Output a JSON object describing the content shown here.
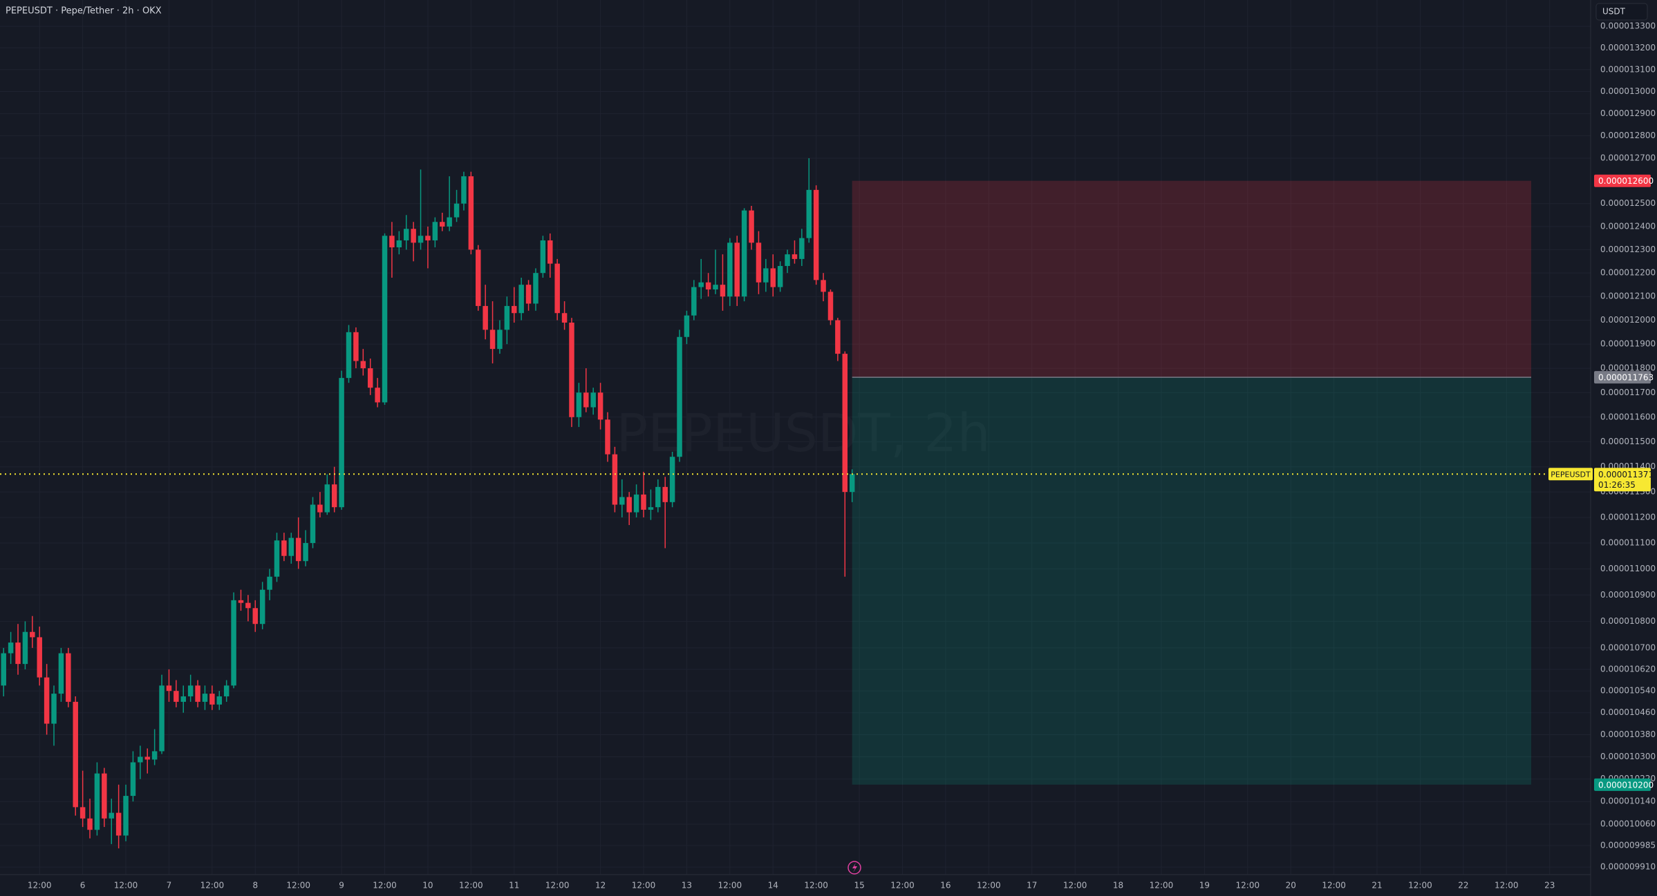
{
  "chart_data": {
    "type": "candlestick",
    "title": "PEPEUSDT · Pepe/Tether · 2h · OKX",
    "watermark": "PEPEUSDT, 2h",
    "currency": "USDT",
    "log_scale": true,
    "grid": true,
    "up_color": "#089981",
    "down_color": "#f23645",
    "ylim": [
      9.884e-06,
      1.3423e-05
    ],
    "xlim": [
      -0.5,
      220.7
    ],
    "yticks": [
      {
        "value": 1.33e-05,
        "label": "0.000013300"
      },
      {
        "value": 1.32e-05,
        "label": "0.000013200"
      },
      {
        "value": 1.31e-05,
        "label": "0.000013100"
      },
      {
        "value": 1.3e-05,
        "label": "0.000013000"
      },
      {
        "value": 1.29e-05,
        "label": "0.000012900"
      },
      {
        "value": 1.28e-05,
        "label": "0.000012800"
      },
      {
        "value": 1.27e-05,
        "label": "0.000012700"
      },
      {
        "value": 1.25e-05,
        "label": "0.000012500"
      },
      {
        "value": 1.24e-05,
        "label": "0.000012400"
      },
      {
        "value": 1.23e-05,
        "label": "0.000012300"
      },
      {
        "value": 1.22e-05,
        "label": "0.000012200"
      },
      {
        "value": 1.21e-05,
        "label": "0.000012100"
      },
      {
        "value": 1.2e-05,
        "label": "0.000012000"
      },
      {
        "value": 1.19e-05,
        "label": "0.000011900"
      },
      {
        "value": 1.18e-05,
        "label": "0.000011800"
      },
      {
        "value": 1.17e-05,
        "label": "0.000011700"
      },
      {
        "value": 1.16e-05,
        "label": "0.000011600"
      },
      {
        "value": 1.15e-05,
        "label": "0.000011500"
      },
      {
        "value": 1.14e-05,
        "label": "0.000011400"
      },
      {
        "value": 1.13e-05,
        "label": "0.000011300"
      },
      {
        "value": 1.12e-05,
        "label": "0.000011200"
      },
      {
        "value": 1.11e-05,
        "label": "0.000011100"
      },
      {
        "value": 1.1e-05,
        "label": "0.000011000"
      },
      {
        "value": 1.09e-05,
        "label": "0.000010900"
      },
      {
        "value": 1.08e-05,
        "label": "0.000010800"
      },
      {
        "value": 1.07e-05,
        "label": "0.000010700"
      },
      {
        "value": 1.062e-05,
        "label": "0.000010620"
      },
      {
        "value": 1.054e-05,
        "label": "0.000010540"
      },
      {
        "value": 1.046e-05,
        "label": "0.000010460"
      },
      {
        "value": 1.038e-05,
        "label": "0.000010380"
      },
      {
        "value": 1.03e-05,
        "label": "0.000010300"
      },
      {
        "value": 1.022e-05,
        "label": "0.000010220"
      },
      {
        "value": 1.014e-05,
        "label": "0.000010140"
      },
      {
        "value": 1.006e-05,
        "label": "0.000010060"
      },
      {
        "value": 9.985e-06,
        "label": "0.000009985"
      },
      {
        "value": 9.91e-06,
        "label": "0.000009910"
      }
    ],
    "xticks": [
      {
        "value": 5,
        "label": "12:00"
      },
      {
        "value": 11,
        "label": "6"
      },
      {
        "value": 17,
        "label": "12:00"
      },
      {
        "value": 23,
        "label": "7"
      },
      {
        "value": 29,
        "label": "12:00"
      },
      {
        "value": 35,
        "label": "8"
      },
      {
        "value": 41,
        "label": "12:00"
      },
      {
        "value": 47,
        "label": "9"
      },
      {
        "value": 53,
        "label": "12:00"
      },
      {
        "value": 59,
        "label": "10"
      },
      {
        "value": 65,
        "label": "12:00"
      },
      {
        "value": 71,
        "label": "11"
      },
      {
        "value": 77,
        "label": "12:00"
      },
      {
        "value": 83,
        "label": "12"
      },
      {
        "value": 89,
        "label": "12:00"
      },
      {
        "value": 95,
        "label": "13"
      },
      {
        "value": 101,
        "label": "12:00"
      },
      {
        "value": 107,
        "label": "14"
      },
      {
        "value": 113,
        "label": "12:00"
      },
      {
        "value": 119,
        "label": "15"
      },
      {
        "value": 125,
        "label": "12:00"
      },
      {
        "value": 131,
        "label": "16"
      },
      {
        "value": 137,
        "label": "12:00"
      },
      {
        "value": 143,
        "label": "17"
      },
      {
        "value": 149,
        "label": "12:00"
      },
      {
        "value": 155,
        "label": "18"
      },
      {
        "value": 161,
        "label": "12:00"
      },
      {
        "value": 167,
        "label": "19"
      },
      {
        "value": 173,
        "label": "12:00"
      },
      {
        "value": 179,
        "label": "20"
      },
      {
        "value": 185,
        "label": "12:00"
      },
      {
        "value": 191,
        "label": "21"
      },
      {
        "value": 197,
        "label": "12:00"
      },
      {
        "value": 203,
        "label": "22"
      },
      {
        "value": 209,
        "label": "12:00"
      },
      {
        "value": 215,
        "label": "23"
      }
    ],
    "series": [
      {
        "name": "PEPEUSDT",
        "open": [
          1.056e-05,
          1.068e-05,
          1.072e-05,
          1.064e-05,
          1.076e-05,
          1.074e-05,
          1.059e-05,
          1.042e-05,
          1.053e-05,
          1.068e-05,
          1.05e-05,
          1.012e-05,
          1.008e-05,
          1.004e-05,
          1.024e-05,
          1.008e-05,
          1.01e-05,
          1.002e-05,
          1.016e-05,
          1.028e-05,
          1.03e-05,
          1.029e-05,
          1.032e-05,
          1.056e-05,
          1.054e-05,
          1.05e-05,
          1.052e-05,
          1.056e-05,
          1.05e-05,
          1.053e-05,
          1.049e-05,
          1.052e-05,
          1.056e-05,
          1.088e-05,
          1.087e-05,
          1.085e-05,
          1.079e-05,
          1.092e-05,
          1.097e-05,
          1.111e-05,
          1.105e-05,
          1.112e-05,
          1.103e-05,
          1.11e-05,
          1.125e-05,
          1.122e-05,
          1.133e-05,
          1.124e-05,
          1.176e-05,
          1.195e-05,
          1.183e-05,
          1.18e-05,
          1.172e-05,
          1.166e-05,
          1.236e-05,
          1.231e-05,
          1.234e-05,
          1.239e-05,
          1.233e-05,
          1.236e-05,
          1.234e-05,
          1.242e-05,
          1.24e-05,
          1.244e-05,
          1.25e-05,
          1.262e-05,
          1.23e-05,
          1.206e-05,
          1.196e-05,
          1.188e-05,
          1.196e-05,
          1.206e-05,
          1.203e-05,
          1.215e-05,
          1.207e-05,
          1.22e-05,
          1.234e-05,
          1.224e-05,
          1.203e-05,
          1.199e-05,
          1.16e-05,
          1.17e-05,
          1.164e-05,
          1.17e-05,
          1.159e-05,
          1.145e-05,
          1.125e-05,
          1.128e-05,
          1.122e-05,
          1.129e-05,
          1.123e-05,
          1.124e-05,
          1.132e-05,
          1.126e-05,
          1.144e-05,
          1.193e-05,
          1.202e-05,
          1.214e-05,
          1.216e-05,
          1.213e-05,
          1.215e-05,
          1.21e-05,
          1.233e-05,
          1.21e-05,
          1.247e-05,
          1.233e-05,
          1.216e-05,
          1.222e-05,
          1.214e-05,
          1.223e-05,
          1.228e-05,
          1.226e-05,
          1.235e-05,
          1.256e-05,
          1.217e-05,
          1.212e-05,
          1.2e-05,
          1.186e-05,
          1.13e-05
        ],
        "high": [
          1.07e-05,
          1.076e-05,
          1.079e-05,
          1.08e-05,
          1.082e-05,
          1.078e-05,
          1.064e-05,
          1.056e-05,
          1.07e-05,
          1.07e-05,
          1.052e-05,
          1.025e-05,
          1.015e-05,
          1.028e-05,
          1.026e-05,
          1.015e-05,
          1.02e-05,
          1.02e-05,
          1.032e-05,
          1.034e-05,
          1.033e-05,
          1.04e-05,
          1.06e-05,
          1.062e-05,
          1.058e-05,
          1.056e-05,
          1.06e-05,
          1.058e-05,
          1.056e-05,
          1.056e-05,
          1.054e-05,
          1.058e-05,
          1.091e-05,
          1.092e-05,
          1.09e-05,
          1.088e-05,
          1.095e-05,
          1.1e-05,
          1.114e-05,
          1.114e-05,
          1.114e-05,
          1.12e-05,
          1.115e-05,
          1.128e-05,
          1.13e-05,
          1.137e-05,
          1.14e-05,
          1.179e-05,
          1.198e-05,
          1.197e-05,
          1.188e-05,
          1.184e-05,
          1.176e-05,
          1.237e-05,
          1.242e-05,
          1.238e-05,
          1.245e-05,
          1.242e-05,
          1.265e-05,
          1.24e-05,
          1.244e-05,
          1.246e-05,
          1.262e-05,
          1.256e-05,
          1.264e-05,
          1.264e-05,
          1.232e-05,
          1.215e-05,
          1.208e-05,
          1.2e-05,
          1.21e-05,
          1.214e-05,
          1.218e-05,
          1.217e-05,
          1.222e-05,
          1.236e-05,
          1.237e-05,
          1.226e-05,
          1.208e-05,
          1.201e-05,
          1.174e-05,
          1.18e-05,
          1.172e-05,
          1.174e-05,
          1.162e-05,
          1.148e-05,
          1.135e-05,
          1.13e-05,
          1.133e-05,
          1.138e-05,
          1.131e-05,
          1.135e-05,
          1.136e-05,
          1.146e-05,
          1.196e-05,
          1.204e-05,
          1.217e-05,
          1.226e-05,
          1.22e-05,
          1.23e-05,
          1.228e-05,
          1.235e-05,
          1.236e-05,
          1.248e-05,
          1.249e-05,
          1.238e-05,
          1.226e-05,
          1.228e-05,
          1.225e-05,
          1.23e-05,
          1.234e-05,
          1.239e-05,
          1.27e-05,
          1.258e-05,
          1.22e-05,
          1.213e-05,
          1.201e-05,
          1.187e-05,
          1.139e-05
        ],
        "low": [
          1.052e-05,
          1.064e-05,
          1.06e-05,
          1.062e-05,
          1.07e-05,
          1.056e-05,
          1.038e-05,
          1.034e-05,
          1.05e-05,
          1.048e-05,
          1.009e-05,
          1.005e-05,
          1.001e-05,
          1.002e-05,
          1.005e-05,
          9.99e-06,
          9.975e-06,
          1e-05,
          1.014e-05,
          1.022e-05,
          1.024e-05,
          1.027e-05,
          1.031e-05,
          1.05e-05,
          1.048e-05,
          1.046e-05,
          1.05e-05,
          1.048e-05,
          1.047e-05,
          1.047e-05,
          1.047e-05,
          1.05e-05,
          1.055e-05,
          1.084e-05,
          1.08e-05,
          1.076e-05,
          1.077e-05,
          1.088e-05,
          1.095e-05,
          1.103e-05,
          1.102e-05,
          1.1e-05,
          1.101e-05,
          1.108e-05,
          1.12e-05,
          1.121e-05,
          1.122e-05,
          1.123e-05,
          1.174e-05,
          1.18e-05,
          1.177e-05,
          1.169e-05,
          1.164e-05,
          1.165e-05,
          1.218e-05,
          1.228e-05,
          1.23e-05,
          1.225e-05,
          1.23e-05,
          1.222e-05,
          1.231e-05,
          1.238e-05,
          1.238e-05,
          1.242e-05,
          1.247e-05,
          1.228e-05,
          1.204e-05,
          1.192e-05,
          1.182e-05,
          1.186e-05,
          1.19e-05,
          1.199e-05,
          1.2e-05,
          1.204e-05,
          1.204e-05,
          1.218e-05,
          1.218e-05,
          1.2e-05,
          1.196e-05,
          1.156e-05,
          1.156e-05,
          1.162e-05,
          1.161e-05,
          1.155e-05,
          1.142e-05,
          1.122e-05,
          1.12e-05,
          1.117e-05,
          1.12e-05,
          1.12e-05,
          1.119e-05,
          1.122e-05,
          1.108e-05,
          1.124e-05,
          1.142e-05,
          1.19e-05,
          1.2e-05,
          1.209e-05,
          1.21e-05,
          1.211e-05,
          1.204e-05,
          1.206e-05,
          1.206e-05,
          1.208e-05,
          1.23e-05,
          1.211e-05,
          1.212e-05,
          1.21e-05,
          1.212e-05,
          1.22e-05,
          1.224e-05,
          1.223e-05,
          1.233e-05,
          1.215e-05,
          1.208e-05,
          1.198e-05,
          1.183e-05,
          1.097e-05,
          1.126e-05
        ],
        "close": [
          1.068e-05,
          1.072e-05,
          1.064e-05,
          1.076e-05,
          1.074e-05,
          1.059e-05,
          1.042e-05,
          1.053e-05,
          1.068e-05,
          1.05e-05,
          1.012e-05,
          1.008e-05,
          1.004e-05,
          1.024e-05,
          1.008e-05,
          1.01e-05,
          1.002e-05,
          1.016e-05,
          1.028e-05,
          1.03e-05,
          1.029e-05,
          1.032e-05,
          1.056e-05,
          1.054e-05,
          1.05e-05,
          1.052e-05,
          1.056e-05,
          1.05e-05,
          1.053e-05,
          1.049e-05,
          1.052e-05,
          1.056e-05,
          1.088e-05,
          1.087e-05,
          1.085e-05,
          1.079e-05,
          1.092e-05,
          1.097e-05,
          1.111e-05,
          1.105e-05,
          1.112e-05,
          1.103e-05,
          1.11e-05,
          1.125e-05,
          1.122e-05,
          1.133e-05,
          1.124e-05,
          1.176e-05,
          1.195e-05,
          1.183e-05,
          1.18e-05,
          1.172e-05,
          1.166e-05,
          1.236e-05,
          1.231e-05,
          1.234e-05,
          1.239e-05,
          1.233e-05,
          1.236e-05,
          1.234e-05,
          1.242e-05,
          1.24e-05,
          1.244e-05,
          1.25e-05,
          1.262e-05,
          1.23e-05,
          1.206e-05,
          1.196e-05,
          1.188e-05,
          1.196e-05,
          1.206e-05,
          1.203e-05,
          1.215e-05,
          1.207e-05,
          1.22e-05,
          1.234e-05,
          1.224e-05,
          1.203e-05,
          1.199e-05,
          1.16e-05,
          1.17e-05,
          1.164e-05,
          1.17e-05,
          1.159e-05,
          1.145e-05,
          1.125e-05,
          1.128e-05,
          1.122e-05,
          1.129e-05,
          1.123e-05,
          1.124e-05,
          1.132e-05,
          1.126e-05,
          1.144e-05,
          1.193e-05,
          1.202e-05,
          1.214e-05,
          1.216e-05,
          1.213e-05,
          1.215e-05,
          1.21e-05,
          1.233e-05,
          1.21e-05,
          1.247e-05,
          1.233e-05,
          1.216e-05,
          1.222e-05,
          1.214e-05,
          1.223e-05,
          1.228e-05,
          1.226e-05,
          1.235e-05,
          1.256e-05,
          1.217e-05,
          1.212e-05,
          1.2e-05,
          1.186e-05,
          1.13e-05,
          1.1371e-05
        ]
      }
    ],
    "position": {
      "stop": 1.26e-05,
      "stop_label": "0.000012600",
      "stop_color": "#f23645",
      "entry": 1.1763e-05,
      "entry_label": "0.000011763",
      "entry_color": "#787b86",
      "target": 1.02e-05,
      "target_label": "0.000010200",
      "target_color": "#089981"
    },
    "current": {
      "value": 1.1371e-05,
      "label": "0.000011371",
      "symbol": "PEPEUSDT",
      "countdown": "01:26:35",
      "color": "#f7e832"
    }
  }
}
